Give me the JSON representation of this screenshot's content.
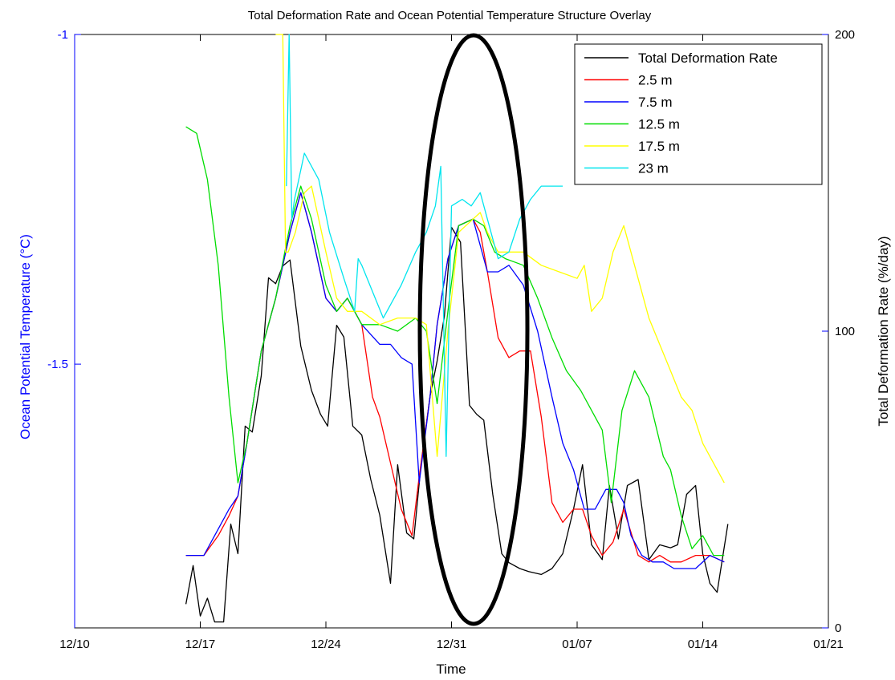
{
  "chart_data": {
    "type": "line",
    "title": "Total Deformation Rate and Ocean Potential Temperature Structure Overlay",
    "xlabel": "Time",
    "ylabel_left": "Ocean Potential Temperature (°C)",
    "ylabel_right": "Total Deformation Rate (%/day)",
    "x_ticks": [
      "12/10",
      "12/17",
      "12/24",
      "12/31",
      "01/07",
      "01/14",
      "01/21"
    ],
    "xlim_days": [
      0,
      42
    ],
    "left_axis": {
      "ticks": [
        "-1",
        "-1.5"
      ],
      "ylim": [
        -1.9,
        -1.0
      ],
      "color": "#0000ff"
    },
    "right_axis": {
      "ticks": [
        "200",
        "100",
        "0"
      ],
      "ylim": [
        0,
        200
      ],
      "color": "#000000"
    },
    "grid": false,
    "legend_position": "top-right",
    "annotation": {
      "shape": "ellipse",
      "center_day": 22.5,
      "center_rate": 100
    },
    "series": [
      {
        "name": "Total Deformation Rate",
        "color": "#000000",
        "axis": "right",
        "x": [
          6.2,
          6.6,
          7.0,
          7.4,
          7.8,
          8.3,
          8.7,
          9.1,
          9.5,
          9.9,
          10.4,
          10.8,
          11.2,
          11.6,
          12.0,
          12.6,
          13.2,
          13.7,
          14.1,
          14.6,
          15.0,
          15.5,
          16.0,
          16.5,
          17.0,
          17.6,
          18.0,
          18.5,
          18.9,
          19.3,
          19.8,
          20.2,
          20.6,
          21.0,
          21.5,
          22.0,
          22.4,
          22.8,
          23.3,
          23.8,
          24.2,
          24.8,
          25.3,
          26.0,
          26.6,
          27.2,
          27.8,
          28.3,
          28.8,
          29.4,
          29.8,
          30.3,
          30.8,
          31.4,
          32.0,
          32.6,
          33.2,
          33.6,
          34.1,
          34.6,
          35.0,
          35.4,
          35.8,
          36.4
        ],
        "values": [
          8,
          21,
          4,
          10,
          2,
          2,
          35,
          25,
          68,
          66,
          85,
          118,
          116,
          122,
          124,
          95,
          80,
          72,
          68,
          102,
          98,
          68,
          65,
          50,
          38,
          15,
          55,
          32,
          30,
          55,
          78,
          90,
          105,
          135,
          130,
          75,
          72,
          70,
          45,
          25,
          22,
          20,
          19,
          18,
          20,
          25,
          40,
          55,
          28,
          23,
          48,
          30,
          48,
          50,
          23,
          28,
          27,
          28,
          45,
          48,
          25,
          15,
          12,
          35
        ]
      },
      {
        "name": "2.5 m",
        "color": "#ff0000",
        "axis": "left",
        "x": [
          6.2,
          7.2,
          8.0,
          8.6,
          9.1,
          9.6,
          10.4,
          11.2,
          12.0,
          12.6,
          13.2,
          14.0,
          14.6,
          15.2,
          16.0,
          16.6,
          17.0,
          17.6,
          18.2,
          18.8,
          19.2,
          19.8,
          20.2,
          20.8,
          21.4,
          22.2,
          22.6,
          23.0,
          23.6,
          24.2,
          24.8,
          25.4,
          26.0,
          26.6,
          27.2,
          27.8,
          28.3,
          28.8,
          29.4,
          30.0,
          30.6,
          31.4,
          32.0,
          32.6,
          33.2,
          33.8,
          34.6,
          35.4,
          36.2
        ],
        "values": [
          -1.79,
          -1.79,
          -1.76,
          -1.73,
          -1.7,
          -1.62,
          -1.48,
          -1.4,
          -1.3,
          -1.24,
          -1.3,
          -1.4,
          -1.42,
          -1.4,
          -1.44,
          -1.55,
          -1.58,
          -1.65,
          -1.72,
          -1.76,
          -1.67,
          -1.55,
          -1.44,
          -1.34,
          -1.29,
          -1.28,
          -1.3,
          -1.36,
          -1.46,
          -1.49,
          -1.48,
          -1.48,
          -1.58,
          -1.71,
          -1.74,
          -1.72,
          -1.72,
          -1.76,
          -1.79,
          -1.77,
          -1.72,
          -1.79,
          -1.8,
          -1.79,
          -1.8,
          -1.8,
          -1.79,
          -1.79,
          -1.8
        ]
      },
      {
        "name": "7.5 m",
        "color": "#0000ff",
        "axis": "left",
        "x": [
          6.2,
          7.2,
          8.0,
          8.6,
          9.1,
          9.6,
          10.4,
          11.2,
          12.0,
          12.6,
          13.2,
          14.0,
          14.6,
          15.2,
          16.0,
          17.0,
          17.6,
          18.2,
          18.8,
          19.2,
          19.8,
          20.2,
          20.8,
          21.4,
          22.2,
          22.6,
          23.0,
          23.6,
          24.2,
          25.0,
          25.8,
          26.6,
          27.2,
          27.8,
          28.4,
          29.0,
          29.6,
          30.2,
          30.6,
          31.0,
          31.6,
          32.2,
          32.8,
          33.4,
          34.0,
          34.6,
          35.4,
          36.2
        ],
        "values": [
          -1.79,
          -1.79,
          -1.75,
          -1.72,
          -1.7,
          -1.62,
          -1.48,
          -1.4,
          -1.3,
          -1.24,
          -1.3,
          -1.4,
          -1.42,
          -1.4,
          -1.44,
          -1.47,
          -1.47,
          -1.49,
          -1.5,
          -1.68,
          -1.55,
          -1.44,
          -1.34,
          -1.29,
          -1.28,
          -1.32,
          -1.36,
          -1.36,
          -1.35,
          -1.38,
          -1.45,
          -1.55,
          -1.62,
          -1.66,
          -1.72,
          -1.72,
          -1.69,
          -1.69,
          -1.71,
          -1.76,
          -1.79,
          -1.8,
          -1.8,
          -1.81,
          -1.81,
          -1.81,
          -1.79,
          -1.8
        ]
      },
      {
        "name": "12.5 m",
        "color": "#00dd00",
        "axis": "left",
        "x": [
          6.2,
          6.8,
          7.4,
          8.0,
          8.6,
          9.1,
          9.6,
          10.4,
          11.2,
          12.0,
          12.6,
          13.2,
          14.0,
          14.6,
          15.2,
          16.0,
          17.0,
          18.0,
          19.0,
          19.6,
          20.2,
          20.8,
          21.4,
          22.2,
          22.8,
          23.4,
          24.0,
          25.0,
          25.8,
          26.6,
          27.4,
          28.2,
          28.8,
          29.4,
          29.9,
          30.5,
          31.2,
          32.0,
          32.8,
          33.2,
          33.8,
          34.4,
          35.0,
          35.6,
          36.2
        ],
        "values": [
          -1.14,
          -1.15,
          -1.22,
          -1.35,
          -1.55,
          -1.68,
          -1.62,
          -1.48,
          -1.4,
          -1.29,
          -1.23,
          -1.28,
          -1.38,
          -1.42,
          -1.4,
          -1.44,
          -1.44,
          -1.45,
          -1.43,
          -1.45,
          -1.56,
          -1.42,
          -1.29,
          -1.28,
          -1.29,
          -1.33,
          -1.34,
          -1.35,
          -1.4,
          -1.46,
          -1.51,
          -1.54,
          -1.57,
          -1.6,
          -1.71,
          -1.57,
          -1.51,
          -1.55,
          -1.64,
          -1.66,
          -1.73,
          -1.78,
          -1.76,
          -1.79,
          -1.79
        ]
      },
      {
        "name": "17.5 m",
        "color": "#ffff00",
        "axis": "left",
        "x": [
          11.2,
          11.6,
          11.75,
          11.9,
          12.3,
          12.8,
          13.2,
          14.0,
          14.6,
          15.2,
          16.0,
          17.0,
          18.0,
          19.0,
          19.6,
          20.2,
          20.8,
          21.4,
          22.2,
          22.6,
          23.0,
          23.6,
          24.2,
          25.0,
          26.0,
          27.0,
          28.0,
          28.4,
          28.8,
          29.4,
          30.0,
          30.6,
          31.2,
          32.0,
          32.6,
          33.2,
          33.8,
          34.4,
          35.0,
          35.6,
          36.2
        ],
        "values": [
          -1.0,
          -1.0,
          -1.33,
          -1.33,
          -1.3,
          -1.24,
          -1.23,
          -1.33,
          -1.4,
          -1.42,
          -1.42,
          -1.44,
          -1.43,
          -1.43,
          -1.44,
          -1.64,
          -1.45,
          -1.3,
          -1.28,
          -1.27,
          -1.3,
          -1.33,
          -1.33,
          -1.33,
          -1.35,
          -1.36,
          -1.37,
          -1.35,
          -1.42,
          -1.4,
          -1.33,
          -1.29,
          -1.35,
          -1.43,
          -1.47,
          -1.51,
          -1.55,
          -1.57,
          -1.62,
          -1.65,
          -1.68
        ]
      },
      {
        "name": "23 m",
        "color": "#00e5ee",
        "axis": "left",
        "x": [
          11.8,
          11.95,
          12.1,
          12.25,
          12.8,
          13.6,
          14.2,
          15.0,
          15.6,
          15.8,
          16.0,
          17.2,
          18.2,
          19.0,
          19.6,
          20.1,
          20.4,
          20.7,
          21.0,
          21.6,
          22.1,
          22.6,
          23.0,
          23.6,
          24.2,
          24.8,
          25.4,
          26.0,
          26.6,
          27.2
        ],
        "values": [
          -1.23,
          -1.0,
          -1.28,
          -1.25,
          -1.18,
          -1.22,
          -1.3,
          -1.37,
          -1.42,
          -1.34,
          -1.35,
          -1.43,
          -1.38,
          -1.33,
          -1.3,
          -1.26,
          -1.2,
          -1.64,
          -1.26,
          -1.25,
          -1.26,
          -1.24,
          -1.28,
          -1.34,
          -1.33,
          -1.28,
          -1.25,
          -1.23,
          -1.23,
          -1.23
        ]
      }
    ]
  }
}
